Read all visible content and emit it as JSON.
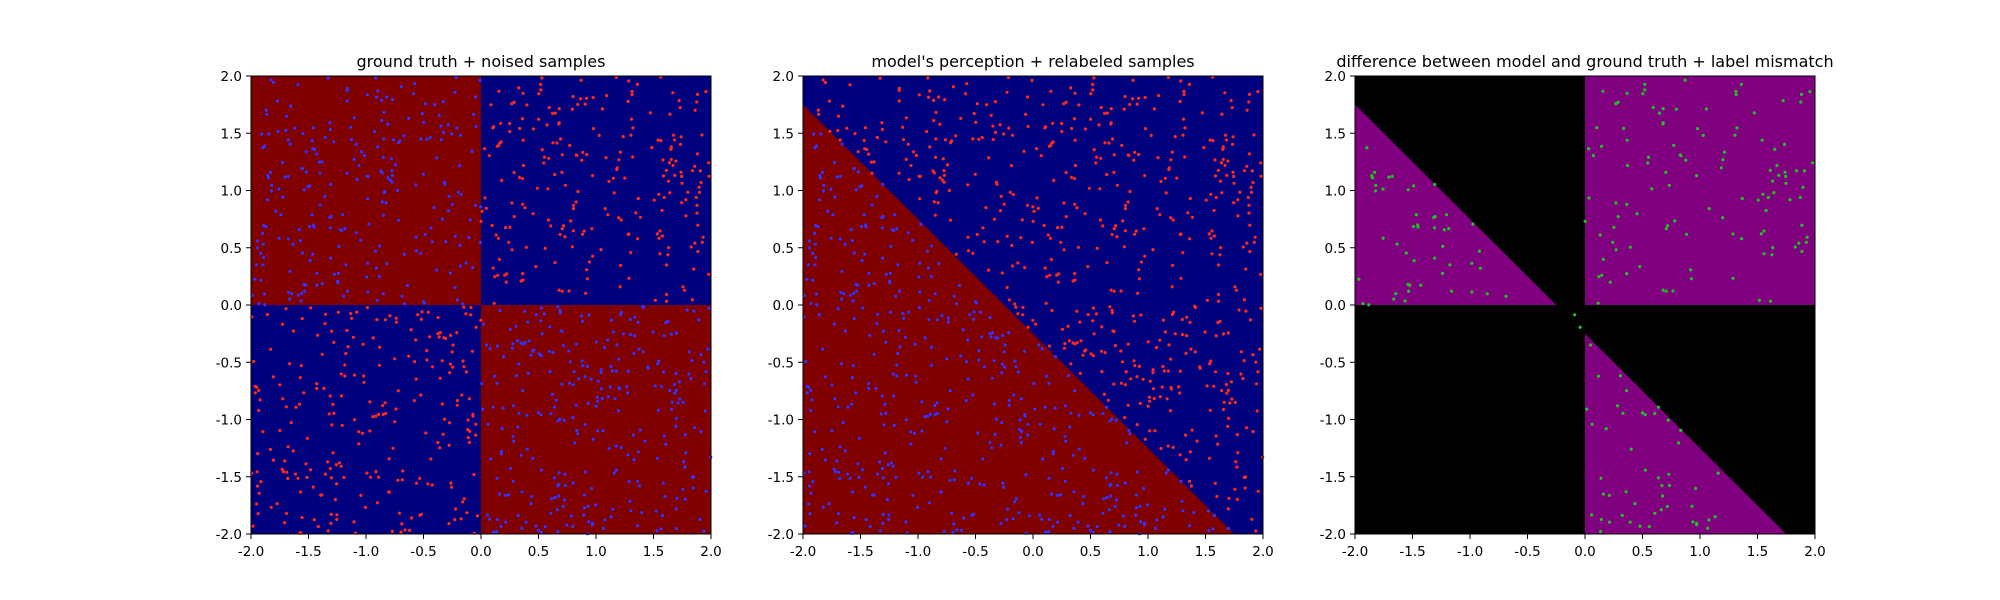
{
  "colors": {
    "background": "#ffffff",
    "class_red_region": "#800000",
    "class_blue_region": "#00007f",
    "difference_region": "#800080",
    "agreement_region": "#000000",
    "red_points": "#ff2a1a",
    "blue_points": "#3333ff",
    "green_points": "#1fc21f"
  },
  "chart_data": [
    {
      "type": "scatter",
      "title": "ground truth + noised samples",
      "xlim": [
        -2.0,
        2.0
      ],
      "ylim": [
        -2.0,
        2.0
      ],
      "xticks": [
        "-2.0",
        "-1.5",
        "-1.0",
        "-0.5",
        "0.0",
        "0.5",
        "1.0",
        "1.5",
        "2.0"
      ],
      "yticks": [
        "-2.0",
        "-1.5",
        "-1.0",
        "-0.5",
        "0.0",
        "0.5",
        "1.0",
        "1.5",
        "2.0"
      ],
      "background_regions": "red where x*y < 0, blue where x*y > 0 (boundaries x=0 and y=0)",
      "point_rule": "points drawn in the color opposite to the region containing them",
      "point_count_approx": 1000,
      "series": [
        {
          "color": "red",
          "region": "quadrants with x*y > 0"
        },
        {
          "color": "blue",
          "region": "quadrants with x*y < 0"
        }
      ]
    },
    {
      "type": "scatter",
      "title": "model's perception + relabeled samples",
      "xlim": [
        -2.0,
        2.0
      ],
      "ylim": [
        -2.0,
        2.0
      ],
      "xticks": [
        "-2.0",
        "-1.5",
        "-1.0",
        "-0.5",
        "0.0",
        "0.5",
        "1.0",
        "1.5",
        "2.0"
      ],
      "yticks": [
        "-2.0",
        "-1.5",
        "-1.0",
        "-0.5",
        "0.0",
        "0.5",
        "1.0",
        "1.5",
        "2.0"
      ],
      "decision_boundary": {
        "slope": -1.0,
        "intercept": -0.25,
        "below_color": "red",
        "above_color": "blue"
      },
      "point_rule": "points drawn in the color opposite to the region containing them",
      "point_count_approx": 1000,
      "series": [
        {
          "color": "red",
          "region": "above boundary"
        },
        {
          "color": "blue",
          "region": "below boundary"
        }
      ]
    },
    {
      "type": "scatter",
      "title": "difference between model and ground truth + label mismatch",
      "xlim": [
        -2.0,
        2.0
      ],
      "ylim": [
        -2.0,
        2.0
      ],
      "xticks": [
        "-2.0",
        "-1.5",
        "-1.0",
        "-0.5",
        "0.0",
        "0.5",
        "1.0",
        "1.5",
        "2.0"
      ],
      "yticks": [
        "-2.0",
        "-1.5",
        "-1.0",
        "-0.5",
        "0.0",
        "0.5",
        "1.0",
        "1.5",
        "2.0"
      ],
      "background_regions": "purple where model and ground truth disagree, black where they agree",
      "point_rule": "green points where model label and ground truth label agree region-wise (black area)",
      "point_count_approx": 480,
      "series": [
        {
          "color": "green",
          "region": "agreement (black) regions"
        }
      ]
    }
  ]
}
